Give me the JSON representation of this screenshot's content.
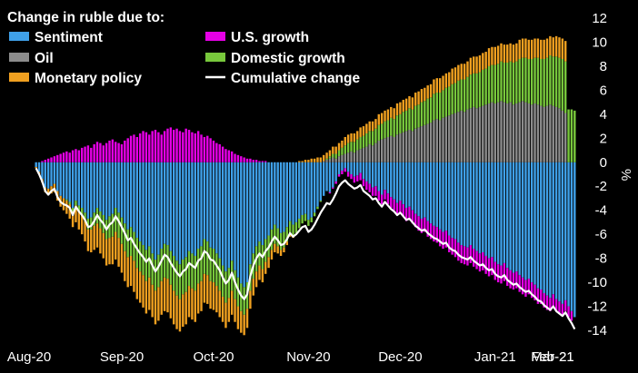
{
  "chart_data": {
    "type": "bar",
    "title": "Change in ruble due to:",
    "ylabel": "%",
    "xlabel": "",
    "ylim": [
      -14,
      12
    ],
    "yticks": [
      12,
      10,
      8,
      6,
      4,
      2,
      0,
      -2,
      -4,
      -6,
      -8,
      -10,
      -12,
      -14
    ],
    "month_labels": [
      "Aug-20",
      "Sep-20",
      "Oct-20",
      "Nov-20",
      "Dec-20",
      "Jan-21",
      "Feb-21",
      "Mar-21"
    ],
    "grid": false,
    "legend_position": "top-left",
    "stacked": true,
    "x_start": "2020-08-04",
    "x_step_days": 1,
    "series": [
      {
        "key": "sentiment",
        "name": "Sentiment",
        "color": "#3fa0e8",
        "values": [
          -0.4,
          -0.8,
          -1.4,
          -2.1,
          -2.2,
          -2.0,
          -1.8,
          -2.4,
          -2.8,
          -3.0,
          -3.1,
          -3.3,
          -3.8,
          -3.2,
          -3.6,
          -3.8,
          -4.2,
          -4.7,
          -4.6,
          -4.2,
          -3.8,
          -4.1,
          -4.4,
          -4.8,
          -4.5,
          -4.3,
          -3.8,
          -4.2,
          -4.6,
          -5.1,
          -5.6,
          -5.4,
          -5.8,
          -6.3,
          -6.6,
          -6.9,
          -7.3,
          -7.0,
          -7.6,
          -8.1,
          -7.7,
          -7.2,
          -6.8,
          -6.9,
          -7.4,
          -7.8,
          -8.2,
          -8.5,
          -8.1,
          -7.9,
          -7.4,
          -7.6,
          -7.8,
          -7.2,
          -7.0,
          -6.4,
          -6.6,
          -7.1,
          -7.2,
          -7.6,
          -8.0,
          -8.6,
          -9.1,
          -8.8,
          -8.2,
          -9.0,
          -9.6,
          -10.1,
          -10.4,
          -10.0,
          -8.5,
          -7.6,
          -7.0,
          -6.6,
          -6.9,
          -6.4,
          -6.1,
          -5.6,
          -5.2,
          -5.5,
          -5.9,
          -5.8,
          -5.4,
          -4.9,
          -5.2,
          -5.0,
          -4.7,
          -4.4,
          -4.3,
          -4.8,
          -4.6,
          -4.2,
          -3.7,
          -3.2,
          -2.8,
          -2.4,
          -2.5,
          -2.1,
          -1.6,
          -1.0,
          -0.7,
          -0.5,
          -0.8,
          -1.0,
          -1.2,
          -1.1,
          -0.9,
          -1.4,
          -1.6,
          -1.8,
          -2.1,
          -2.0,
          -2.4,
          -2.7,
          -2.3,
          -2.6,
          -2.9,
          -3.1,
          -3.4,
          -3.2,
          -3.5,
          -3.8,
          -3.7,
          -4.0,
          -4.3,
          -4.5,
          -4.7,
          -4.6,
          -4.9,
          -5.1,
          -5.3,
          -5.4,
          -5.6,
          -5.8,
          -5.7,
          -6.1,
          -6.3,
          -6.4,
          -6.7,
          -6.9,
          -7.0,
          -7.1,
          -6.9,
          -7.2,
          -7.4,
          -7.6,
          -7.5,
          -7.8,
          -8.0,
          -7.9,
          -8.3,
          -8.5,
          -8.6,
          -8.4,
          -8.8,
          -9.0,
          -9.2,
          -9.1,
          -9.4,
          -9.6,
          -9.8,
          -9.7,
          -10.0,
          -10.2,
          -10.5,
          -10.6,
          -10.9,
          -11.1,
          -11.3,
          -11.0,
          -11.4,
          -11.6,
          -11.8,
          -11.5,
          -12.0,
          -12.4,
          -12.9
        ]
      },
      {
        "key": "oil",
        "name": "Oil",
        "color": "#8c8c8c",
        "values": [
          0,
          0,
          0,
          0,
          0,
          0,
          0,
          0,
          0,
          0,
          0,
          0,
          0,
          0,
          0,
          0,
          0,
          0,
          0,
          0,
          0,
          0,
          0,
          0,
          0,
          0,
          0,
          0,
          0,
          0,
          0,
          0,
          0,
          0,
          0,
          0,
          0,
          0,
          0,
          0,
          0,
          0,
          0,
          0,
          0,
          0,
          0,
          0,
          0,
          0,
          0,
          0,
          0,
          0,
          0,
          0,
          0,
          0,
          0,
          0,
          0,
          0,
          0,
          0,
          0,
          0,
          0,
          0,
          0,
          0,
          0,
          0,
          0,
          0,
          0,
          0,
          0,
          0,
          0,
          0,
          0,
          0,
          0,
          0,
          0,
          0,
          0,
          0,
          0,
          0,
          0,
          0,
          0,
          0,
          0.1,
          0.2,
          0.3,
          0.4,
          0.3,
          0.5,
          0.6,
          0.7,
          0.8,
          0.9,
          0.8,
          1.0,
          1.1,
          1.2,
          1.3,
          1.5,
          1.4,
          1.6,
          1.8,
          1.9,
          2.0,
          2.1,
          2.2,
          2.1,
          2.3,
          2.4,
          2.5,
          2.6,
          2.7,
          2.6,
          2.8,
          2.9,
          3.0,
          3.1,
          3.2,
          3.3,
          3.5,
          3.6,
          3.5,
          3.7,
          3.8,
          3.9,
          4.0,
          4.1,
          4.2,
          4.3,
          4.2,
          4.4,
          4.5,
          4.6,
          4.5,
          4.6,
          4.7,
          4.8,
          4.9,
          5.0,
          4.9,
          5.0,
          5.1,
          5.0,
          4.9,
          5.0,
          4.8,
          4.9,
          5.0,
          5.1,
          5.0,
          4.9,
          4.8,
          4.9,
          4.8,
          4.7,
          4.6,
          4.7,
          4.8,
          4.7,
          4.6,
          4.5,
          4.3,
          4.1
        ]
      },
      {
        "key": "us_growth",
        "name": "U.S. growth",
        "color": "#e600e6",
        "values": [
          0,
          0,
          0.1,
          0.2,
          0.3,
          0.4,
          0.5,
          0.6,
          0.7,
          0.8,
          0.9,
          0.8,
          1.0,
          1.1,
          1.0,
          1.2,
          1.3,
          1.4,
          1.2,
          1.5,
          1.7,
          1.6,
          1.4,
          1.6,
          1.8,
          1.9,
          1.7,
          1.6,
          1.5,
          1.8,
          2.0,
          2.2,
          2.3,
          2.1,
          2.4,
          2.6,
          2.5,
          2.3,
          2.6,
          2.7,
          2.5,
          2.3,
          2.6,
          2.8,
          2.9,
          2.7,
          2.8,
          2.6,
          2.5,
          2.8,
          2.7,
          2.5,
          2.4,
          2.6,
          2.3,
          2.1,
          2.2,
          2.0,
          1.8,
          1.6,
          1.5,
          1.3,
          1.1,
          1.0,
          0.9,
          0.7,
          0.6,
          0.5,
          0.4,
          0.3,
          0.3,
          0.2,
          0.2,
          0.1,
          0.1,
          0.1,
          0,
          0,
          0,
          0,
          0,
          0,
          0,
          0,
          0,
          0,
          0,
          0,
          0,
          0,
          0,
          0,
          0,
          0,
          0,
          0,
          -0.1,
          -0.1,
          -0.2,
          -0.2,
          -0.3,
          -0.3,
          -0.4,
          -0.4,
          -0.5,
          -0.5,
          -0.6,
          -0.6,
          -0.7,
          -0.7,
          -0.7,
          -0.8,
          -0.8,
          -0.8,
          -0.8,
          -0.9,
          -0.9,
          -0.9,
          -1.0,
          -1.0,
          -1.0,
          -1.1,
          -1.1,
          -1.1,
          -1.1,
          -1.2,
          -1.2,
          -1.2,
          -1.3,
          -1.3,
          -1.3,
          -1.3,
          -1.4,
          -1.4,
          -1.4,
          -1.4,
          -1.4,
          -1.5,
          -1.5,
          -1.5,
          -1.5,
          -1.5,
          -1.5,
          -1.5,
          -1.5,
          -1.5,
          -1.5,
          -1.5,
          -1.5,
          -1.5,
          -1.5,
          -1.5,
          -1.5,
          -1.5,
          -1.5,
          -1.5,
          -1.4,
          -1.4,
          -1.4,
          -1.4,
          -1.4,
          -1.3,
          -1.3,
          -1.3,
          -1.3,
          -1.2,
          -1.2,
          -1.2,
          -1.1,
          -1.1,
          -1.0,
          -1.0,
          -1.0,
          -0.9,
          -0.9,
          -0.8
        ]
      },
      {
        "key": "domestic_growth",
        "name": "Domestic growth",
        "color": "#78c83c",
        "values": [
          0,
          0,
          0,
          0,
          0,
          0,
          0,
          0,
          0,
          0,
          -0.1,
          -0.2,
          -0.3,
          -0.4,
          -0.5,
          -0.6,
          -0.7,
          -0.9,
          -1.0,
          -1.1,
          -1.3,
          -1.4,
          -1.5,
          -1.6,
          -1.8,
          -1.9,
          -2.0,
          -2.1,
          -2.2,
          -2.3,
          -2.3,
          -2.4,
          -2.4,
          -2.5,
          -2.5,
          -2.5,
          -2.6,
          -2.6,
          -2.6,
          -2.6,
          -2.7,
          -2.7,
          -2.8,
          -2.8,
          -2.8,
          -2.9,
          -2.9,
          -2.9,
          -2.9,
          -2.9,
          -2.9,
          -2.9,
          -2.9,
          -2.9,
          -2.9,
          -2.9,
          -2.8,
          -2.8,
          -2.8,
          -2.7,
          -2.7,
          -2.6,
          -2.6,
          -2.5,
          -2.5,
          -2.4,
          -2.4,
          -2.3,
          -2.3,
          -2.2,
          -2.2,
          -2.1,
          -2.1,
          -2.0,
          -2.0,
          -1.9,
          -1.8,
          -1.7,
          -1.6,
          -1.5,
          -1.4,
          -1.3,
          -1.2,
          -1.1,
          -1.0,
          -0.9,
          -0.8,
          -0.7,
          -0.6,
          -0.5,
          -0.4,
          -0.3,
          -0.2,
          -0.1,
          0,
          0.1,
          0.2,
          0.3,
          0.4,
          0.5,
          0.6,
          0.7,
          0.8,
          0.8,
          0.9,
          0.9,
          1.0,
          1.0,
          1.1,
          1.1,
          1.2,
          1.2,
          1.3,
          1.3,
          1.4,
          1.4,
          1.5,
          1.5,
          1.6,
          1.6,
          1.7,
          1.7,
          1.8,
          1.8,
          1.9,
          1.9,
          2.0,
          2.0,
          2.1,
          2.1,
          2.2,
          2.2,
          2.3,
          2.3,
          2.4,
          2.4,
          2.5,
          2.5,
          2.6,
          2.6,
          2.7,
          2.7,
          2.8,
          2.8,
          2.9,
          2.9,
          3.0,
          3.0,
          3.1,
          3.1,
          3.2,
          3.2,
          3.3,
          3.3,
          3.4,
          3.4,
          3.5,
          3.5,
          3.6,
          3.6,
          3.7,
          3.7,
          3.8,
          3.8,
          3.9,
          3.9,
          4.0,
          4.0,
          4.1,
          4.1,
          4.2,
          4.2,
          4.3,
          4.3,
          4.4,
          4.4,
          4.3,
          4.2
        ]
      },
      {
        "key": "monetary_policy",
        "name": "Monetary policy",
        "color": "#f0a020",
        "values": [
          -0.1,
          -0.2,
          -0.3,
          -0.4,
          -0.5,
          -0.6,
          -0.7,
          -0.8,
          -0.9,
          -1.0,
          -1.1,
          -1.2,
          -1.3,
          -1.4,
          -1.5,
          -1.6,
          -1.7,
          -1.8,
          -1.9,
          -2.0,
          -2.0,
          -2.1,
          -2.1,
          -2.2,
          -2.2,
          -2.3,
          -2.3,
          -2.4,
          -2.4,
          -2.5,
          -2.5,
          -2.5,
          -2.6,
          -2.6,
          -2.6,
          -2.7,
          -2.7,
          -2.7,
          -2.7,
          -2.8,
          -2.8,
          -2.8,
          -2.8,
          -2.8,
          -2.8,
          -2.8,
          -2.8,
          -2.7,
          -2.7,
          -2.7,
          -2.6,
          -2.6,
          -2.6,
          -2.5,
          -2.5,
          -2.4,
          -2.4,
          -2.3,
          -2.3,
          -2.2,
          -2.2,
          -2.1,
          -2.1,
          -2.0,
          -2.0,
          -1.9,
          -1.9,
          -1.8,
          -1.7,
          -1.6,
          -1.5,
          -1.4,
          -1.3,
          -1.2,
          -1.1,
          -1.0,
          -0.9,
          -0.8,
          -0.7,
          -0.6,
          -0.5,
          -0.4,
          -0.3,
          -0.2,
          -0.1,
          0,
          0.1,
          0.1,
          0.2,
          0.2,
          0.3,
          0.3,
          0.4,
          0.4,
          0.5,
          0.5,
          0.5,
          0.6,
          0.6,
          0.6,
          0.6,
          0.7,
          0.7,
          0.7,
          0.7,
          0.7,
          0.8,
          0.8,
          0.8,
          0.8,
          0.8,
          0.8,
          0.9,
          0.9,
          0.9,
          0.9,
          0.9,
          0.9,
          1.0,
          1.0,
          1.0,
          1.0,
          1.0,
          1.0,
          1.1,
          1.1,
          1.1,
          1.1,
          1.1,
          1.1,
          1.2,
          1.2,
          1.2,
          1.2,
          1.2,
          1.2,
          1.3,
          1.3,
          1.3,
          1.3,
          1.3,
          1.3,
          1.4,
          1.4,
          1.4,
          1.4,
          1.4,
          1.4,
          1.5,
          1.5,
          1.5,
          1.5,
          1.5,
          1.5,
          1.5,
          1.5,
          1.5,
          1.5,
          1.6,
          1.6,
          1.6,
          1.6,
          1.6,
          1.6,
          1.6,
          1.6,
          1.6,
          1.6,
          1.6,
          1.6,
          1.7,
          1.7,
          1.7,
          1.7
        ]
      },
      {
        "key": "cumulative",
        "name": "Cumulative change",
        "color": "#ffffff",
        "kind": "line",
        "values": [
          -0.5,
          -1.0,
          -1.6,
          -2.4,
          -2.7,
          -2.4,
          -2.2,
          -2.9,
          -3.3,
          -3.5,
          -3.6,
          -3.8,
          -4.4,
          -3.7,
          -4.1,
          -4.4,
          -4.8,
          -5.4,
          -5.3,
          -4.9,
          -4.4,
          -4.8,
          -5.1,
          -5.6,
          -5.2,
          -5.0,
          -4.5,
          -4.9,
          -5.4,
          -5.9,
          -6.5,
          -6.3,
          -6.8,
          -7.2,
          -7.6,
          -7.9,
          -8.3,
          -8.0,
          -8.6,
          -9.1,
          -8.7,
          -8.2,
          -7.7,
          -7.9,
          -8.4,
          -8.8,
          -9.2,
          -9.5,
          -9.1,
          -8.9,
          -8.4,
          -8.6,
          -8.8,
          -8.2,
          -8.0,
          -7.4,
          -7.6,
          -8.1,
          -8.2,
          -8.6,
          -9.0,
          -9.6,
          -10.1,
          -9.8,
          -9.2,
          -10.0,
          -10.6,
          -11.1,
          -11.4,
          -11.0,
          -9.5,
          -8.6,
          -8.0,
          -7.6,
          -7.9,
          -7.4,
          -7.1,
          -6.6,
          -6.2,
          -6.5,
          -6.9,
          -6.8,
          -6.4,
          -5.9,
          -6.2,
          -6.0,
          -5.7,
          -5.4,
          -5.3,
          -5.8,
          -5.6,
          -5.2,
          -4.7,
          -4.2,
          -3.8,
          -3.4,
          -3.5,
          -3.1,
          -2.6,
          -2.0,
          -1.7,
          -1.5,
          -1.8,
          -2.0,
          -2.2,
          -2.1,
          -1.9,
          -2.4,
          -2.6,
          -2.8,
          -3.1,
          -3.0,
          -3.4,
          -3.7,
          -3.3,
          -3.6,
          -3.9,
          -4.1,
          -4.4,
          -4.2,
          -4.5,
          -4.8,
          -4.7,
          -5.0,
          -5.3,
          -5.5,
          -5.7,
          -5.6,
          -5.9,
          -6.1,
          -6.3,
          -6.4,
          -6.6,
          -6.8,
          -6.7,
          -7.1,
          -7.3,
          -7.4,
          -7.7,
          -7.9,
          -8.0,
          -8.1,
          -7.9,
          -8.2,
          -8.4,
          -8.6,
          -8.5,
          -8.8,
          -9.0,
          -8.9,
          -9.3,
          -9.5,
          -9.6,
          -9.4,
          -9.8,
          -10.0,
          -10.2,
          -10.1,
          -10.4,
          -10.6,
          -10.8,
          -10.7,
          -11.0,
          -11.2,
          -11.5,
          -11.6,
          -11.9,
          -12.1,
          -12.3,
          -12.0,
          -12.4,
          -12.6,
          -12.8,
          -12.5,
          -13.0,
          -13.4,
          -13.9
        ]
      }
    ]
  }
}
